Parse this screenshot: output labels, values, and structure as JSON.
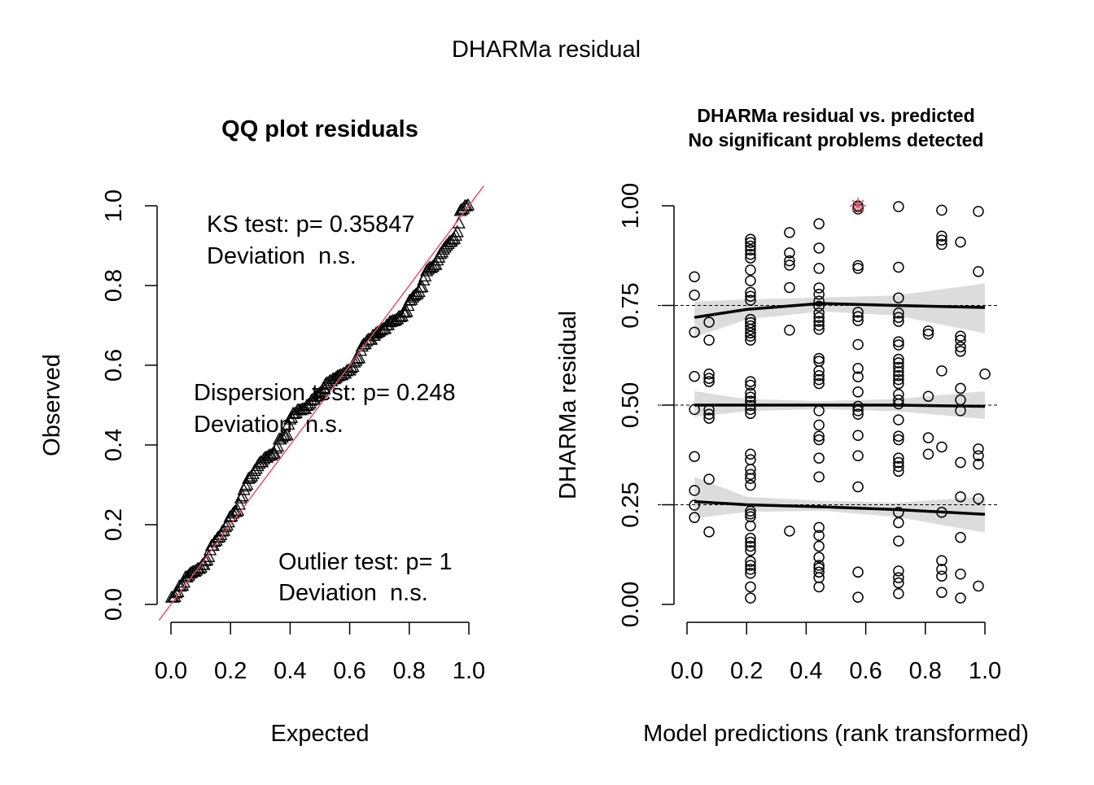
{
  "chart_data": [
    {
      "type": "scatter",
      "title": "QQ plot residuals",
      "xlabel": "Expected",
      "ylabel": "Observed",
      "xlim": [
        0,
        1
      ],
      "ylim": [
        0,
        1
      ],
      "x_ticks": [
        "0.0",
        "0.2",
        "0.4",
        "0.6",
        "0.8",
        "1.0"
      ],
      "y_ticks": [
        "0.0",
        "0.2",
        "0.4",
        "0.6",
        "0.8",
        "1.0"
      ],
      "observed_source": "sorted residuals of the residual-vs-predicted panel",
      "reference_line": {
        "slope": 1,
        "intercept": 0,
        "color": "#DF536B"
      },
      "annotations": [
        {
          "line1": "KS test: p= 0.35847",
          "line2": "Deviation  n.s."
        },
        {
          "line1": "Dispersion test: p= 0.248",
          "line2": "Deviation  n.s."
        },
        {
          "line1": "Outlier test: p= 1",
          "line2": "Deviation  n.s."
        }
      ]
    },
    {
      "type": "scatter",
      "title_line1": "DHARMa residual vs. predicted",
      "title_line2": "No significant problems detected",
      "xlabel": "Model predictions (rank transformed)",
      "ylabel": "DHARMa residual",
      "xlim": [
        0,
        1
      ],
      "ylim": [
        0,
        1
      ],
      "x_ticks": [
        "0.0",
        "0.2",
        "0.4",
        "0.6",
        "0.8",
        "1.0"
      ],
      "y_ticks": [
        "0.00",
        "0.25",
        "0.50",
        "0.75",
        "1.00"
      ],
      "reference_lines": [
        0.25,
        0.5,
        0.75
      ],
      "outlier": {
        "x": 0.574,
        "y": 1.0,
        "color": "#DF536B"
      },
      "columns": [
        {
          "x": 0.025,
          "y": [
            0.822,
            0.776,
            0.683,
            0.572,
            0.489,
            0.371,
            0.286,
            0.249,
            0.218
          ]
        },
        {
          "x": 0.074,
          "y": [
            0.708,
            0.663,
            0.578,
            0.567,
            0.559,
            0.488,
            0.477,
            0.467,
            0.314,
            0.182
          ]
        },
        {
          "x": 0.213,
          "y": [
            0.916,
            0.908,
            0.899,
            0.889,
            0.878,
            0.869,
            0.839,
            0.812,
            0.783,
            0.773,
            0.763,
            0.715,
            0.707,
            0.699,
            0.69,
            0.681,
            0.673,
            0.663,
            0.559,
            0.55,
            0.53,
            0.52,
            0.51,
            0.499,
            0.489,
            0.479,
            0.377,
            0.363,
            0.339,
            0.326,
            0.316,
            0.299,
            0.234,
            0.227,
            0.22,
            0.197,
            0.166,
            0.156,
            0.146,
            0.135,
            0.108,
            0.098,
            0.088,
            0.078,
            0.044,
            0.016
          ]
        },
        {
          "x": 0.344,
          "y": [
            0.933,
            0.882,
            0.862,
            0.851,
            0.795,
            0.688,
            0.184
          ]
        },
        {
          "x": 0.443,
          "y": [
            0.955,
            0.894,
            0.843,
            0.794,
            0.778,
            0.761,
            0.748,
            0.731,
            0.72,
            0.71,
            0.7,
            0.69,
            0.617,
            0.61,
            0.586,
            0.574,
            0.564,
            0.554,
            0.486,
            0.45,
            0.422,
            0.413,
            0.367,
            0.32,
            0.193,
            0.173,
            0.146,
            0.118,
            0.098,
            0.091,
            0.081,
            0.067,
            0.044
          ]
        },
        {
          "x": 0.574,
          "y": [
            0.998,
            0.992,
            0.85,
            0.843,
            0.733,
            0.722,
            0.712,
            0.652,
            0.592,
            0.571,
            0.533,
            0.497,
            0.486,
            0.477,
            0.424,
            0.373,
            0.295,
            0.081,
            0.018
          ]
        },
        {
          "x": 0.71,
          "y": [
            0.998,
            0.846,
            0.769,
            0.731,
            0.72,
            0.71,
            0.659,
            0.651,
            0.615,
            0.606,
            0.595,
            0.584,
            0.574,
            0.564,
            0.554,
            0.527,
            0.513,
            0.503,
            0.463,
            0.422,
            0.413,
            0.367,
            0.356,
            0.346,
            0.334,
            0.231,
            0.205,
            0.159,
            0.084,
            0.067,
            0.054,
            0.027
          ]
        },
        {
          "x": 0.81,
          "y": [
            0.686,
            0.678,
            0.522,
            0.418,
            0.377
          ]
        },
        {
          "x": 0.855,
          "y": [
            0.989,
            0.924,
            0.914,
            0.903,
            0.586,
            0.395,
            0.231,
            0.11,
            0.088,
            0.071,
            0.03
          ]
        },
        {
          "x": 0.918,
          "y": [
            0.909,
            0.673,
            0.663,
            0.646,
            0.635,
            0.542,
            0.513,
            0.486,
            0.356,
            0.27,
            0.168,
            0.076,
            0.016
          ]
        },
        {
          "x": 0.978,
          "y": [
            0.986,
            0.835,
            0.39,
            0.373,
            0.352,
            0.265,
            0.046
          ]
        },
        {
          "x": 1.0,
          "y": [
            0.578
          ]
        }
      ],
      "quantile_fits": [
        {
          "q": 0.75,
          "x": [
            0.025,
            0.2,
            0.45,
            0.7,
            1.0
          ],
          "fit": [
            0.72,
            0.74,
            0.755,
            0.75,
            0.745
          ],
          "lower": [
            0.67,
            0.715,
            0.735,
            0.725,
            0.68
          ],
          "upper": [
            0.76,
            0.765,
            0.77,
            0.775,
            0.805
          ]
        },
        {
          "q": 0.5,
          "x": [
            0.025,
            0.2,
            0.45,
            0.7,
            1.0
          ],
          "fit": [
            0.5,
            0.5,
            0.5,
            0.5,
            0.497
          ],
          "lower": [
            0.47,
            0.485,
            0.49,
            0.485,
            0.465
          ],
          "upper": [
            0.535,
            0.515,
            0.51,
            0.515,
            0.535
          ]
        },
        {
          "q": 0.25,
          "x": [
            0.025,
            0.2,
            0.45,
            0.7,
            1.0
          ],
          "fit": [
            0.258,
            0.25,
            0.245,
            0.238,
            0.226
          ],
          "lower": [
            0.216,
            0.232,
            0.235,
            0.22,
            0.18
          ],
          "upper": [
            0.32,
            0.27,
            0.26,
            0.255,
            0.27
          ]
        }
      ]
    }
  ],
  "page": {
    "title": "DHARMa residual"
  }
}
